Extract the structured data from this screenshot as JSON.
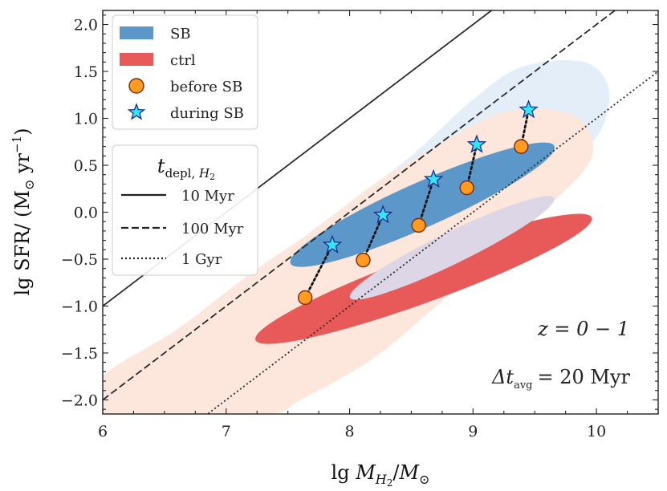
{
  "chart_data": {
    "type": "scatter",
    "xlabel": "lg M_H2/M_⊙",
    "ylabel": "lg SFR/ (M_⊙ yr^-1)",
    "xlim": [
      6.0,
      10.5
    ],
    "ylim": [
      -2.15,
      2.15
    ],
    "x_ticks": [
      6,
      7,
      8,
      9,
      10
    ],
    "x_tick_labels": [
      "6",
      "7",
      "8",
      "9",
      "10"
    ],
    "y_ticks": [
      -2.0,
      -1.5,
      -1.0,
      -0.5,
      0.0,
      0.5,
      1.0,
      1.5,
      2.0
    ],
    "y_tick_labels": [
      "−2.0",
      "−1.5",
      "−1.0",
      "−0.5",
      "0.0",
      "0.5",
      "1.0",
      "1.5",
      "2.0"
    ],
    "legend": {
      "placement": "top-left",
      "entries": [
        {
          "label": "SB",
          "color": "#5b97c9",
          "kind": "patch"
        },
        {
          "label": "ctrl",
          "color": "#e8595a",
          "kind": "patch"
        },
        {
          "label": "before SB",
          "color": "#ff9b21",
          "kind": "circle"
        },
        {
          "label": "during SB",
          "color": "#33e5f5",
          "kind": "star"
        }
      ]
    },
    "depletion_legend": {
      "placement": "upper-left",
      "title": "t_depl,H2",
      "entries": [
        {
          "label": "10 Myr",
          "style": "solid",
          "log_tdepl_yr": 7
        },
        {
          "label": "100 Myr",
          "style": "dashed",
          "log_tdepl_yr": 8
        },
        {
          "label": "1 Gyr",
          "style": "dotted",
          "log_tdepl_yr": 9
        }
      ]
    },
    "annotations": {
      "redshift": "z = 0 − 1",
      "delta_t": "Δt",
      "delta_t_sub": "avg",
      "delta_t_value": "= 20 Myr"
    },
    "series": [
      {
        "name": "before SB",
        "marker": "circle",
        "color": "#ff9b21",
        "x": [
          7.64,
          8.11,
          8.56,
          8.95,
          9.39
        ],
        "y": [
          -0.91,
          -0.51,
          -0.14,
          0.26,
          0.7
        ]
      },
      {
        "name": "during SB",
        "marker": "star",
        "color": "#33e5f5",
        "x": [
          7.86,
          8.27,
          8.68,
          9.03,
          9.45
        ],
        "y": [
          -0.35,
          -0.03,
          0.35,
          0.72,
          1.09
        ]
      }
    ],
    "density_regions": [
      {
        "population": "SB",
        "level": "outer",
        "color": "#e3eef8",
        "outline": [
          [
            7.3,
            -0.7
          ],
          [
            7.6,
            -0.3
          ],
          [
            8.0,
            0.1
          ],
          [
            8.5,
            0.6
          ],
          [
            9.0,
            1.2
          ],
          [
            9.4,
            1.55
          ],
          [
            9.9,
            1.6
          ],
          [
            10.1,
            1.3
          ],
          [
            10.0,
            0.8
          ],
          [
            9.6,
            0.4
          ],
          [
            9.2,
            0.05
          ],
          [
            8.7,
            -0.3
          ],
          [
            8.2,
            -0.65
          ],
          [
            7.7,
            -0.85
          ],
          [
            7.4,
            -0.85
          ]
        ]
      },
      {
        "population": "ctrl",
        "level": "outer",
        "color": "#fde6dc",
        "outline": [
          [
            6.0,
            -2.1
          ],
          [
            6.0,
            -1.75
          ],
          [
            6.6,
            -1.25
          ],
          [
            7.2,
            -0.65
          ],
          [
            7.7,
            -0.2
          ],
          [
            8.2,
            0.3
          ],
          [
            8.7,
            0.7
          ],
          [
            9.2,
            1.05
          ],
          [
            9.6,
            1.1
          ],
          [
            9.9,
            0.95
          ],
          [
            9.95,
            0.55
          ],
          [
            9.6,
            0.05
          ],
          [
            9.2,
            -0.45
          ],
          [
            8.7,
            -1.0
          ],
          [
            8.2,
            -1.55
          ],
          [
            7.6,
            -2.0
          ],
          [
            7.3,
            -2.15
          ],
          [
            6.0,
            -2.15
          ]
        ]
      },
      {
        "population": "ctrl",
        "level": "inner",
        "color": "#e8595a",
        "ellipse": {
          "cx": 8.6,
          "cy": -0.71,
          "rx": 1.45,
          "ry": 0.25,
          "angle_deg": -20
        }
      },
      {
        "population": "SB",
        "level": "inner",
        "color": "#5b97c9",
        "ellipse": {
          "cx": 8.59,
          "cy": 0.08,
          "rx": 1.17,
          "ry": 0.24,
          "angle_deg": -24
        }
      },
      {
        "population": "overlap",
        "level": "inner",
        "color": "#dcd6e6",
        "ellipse": {
          "cx": 8.83,
          "cy": -0.38,
          "rx": 0.92,
          "ry": 0.17,
          "angle_deg": -26
        }
      }
    ]
  }
}
